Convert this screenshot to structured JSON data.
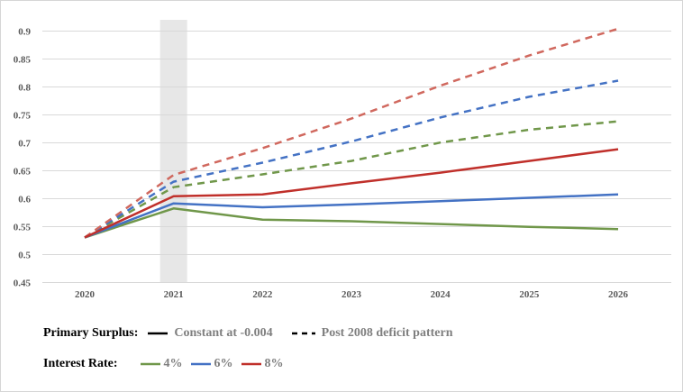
{
  "chart_data": {
    "type": "line",
    "title": "",
    "xlabel": "",
    "ylabel": "",
    "x": [
      2020,
      2021,
      2022,
      2023,
      2024,
      2025,
      2026
    ],
    "x_tick_labels": [
      "2020",
      "2021",
      "2022",
      "2023",
      "2024",
      "2025",
      "2026"
    ],
    "y_tick_values": [
      0.45,
      0.5,
      0.55,
      0.6,
      0.65,
      0.7,
      0.75,
      0.8,
      0.85,
      0.9
    ],
    "y_tick_labels": [
      "0.45",
      "0.5",
      "0.55",
      "0.6",
      "0.65",
      "0.7",
      "0.75",
      "0.8",
      "0.85",
      "0.9"
    ],
    "ylim": [
      0.45,
      0.92
    ],
    "grid": "horizontal",
    "highlight_band": {
      "x": 2021
    },
    "series": [
      {
        "rate": "4%",
        "surplus": "Constant at -0.004",
        "color": "#70974a",
        "dashed": false,
        "values": [
          0.53,
          0.582,
          0.562,
          0.559,
          0.554,
          0.549,
          0.545
        ]
      },
      {
        "rate": "6%",
        "surplus": "Constant at -0.004",
        "color": "#4472c4",
        "dashed": false,
        "values": [
          0.53,
          0.591,
          0.584,
          0.589,
          0.595,
          0.601,
          0.607
        ]
      },
      {
        "rate": "8%",
        "surplus": "Constant at -0.004",
        "color": "#c0302b",
        "dashed": false,
        "values": [
          0.53,
          0.604,
          0.607,
          0.627,
          0.646,
          0.667,
          0.688
        ]
      },
      {
        "rate": "4%",
        "surplus": "Post 2008 deficit pattern",
        "color": "#70974a",
        "dashed": true,
        "values": [
          0.53,
          0.62,
          0.643,
          0.667,
          0.7,
          0.723,
          0.738
        ]
      },
      {
        "rate": "6%",
        "surplus": "Post 2008 deficit pattern",
        "color": "#4472c4",
        "dashed": true,
        "values": [
          0.53,
          0.63,
          0.664,
          0.702,
          0.745,
          0.782,
          0.811
        ]
      },
      {
        "rate": "8%",
        "surplus": "Post 2008 deficit pattern",
        "color": "#d0685e",
        "dashed": true,
        "values": [
          0.53,
          0.642,
          0.69,
          0.743,
          0.802,
          0.856,
          0.904
        ]
      }
    ]
  },
  "legend": {
    "surplus_title": "Primary Surplus:",
    "surplus_items": [
      {
        "label": "Constant at -0.004",
        "style": "solid",
        "color": "#000000"
      },
      {
        "label": "Post 2008 deficit pattern",
        "style": "dashed",
        "color": "#000000"
      }
    ],
    "rate_title": "Interest Rate:",
    "rate_items": [
      {
        "label": "4%",
        "color": "#70974a"
      },
      {
        "label": "6%",
        "color": "#4472c4"
      },
      {
        "label": "8%",
        "color": "#c0302b"
      }
    ]
  },
  "colors": {
    "gridline": "#d9d9d9",
    "tick_text": "#595959",
    "highlight_band": "#e7e7e7"
  }
}
